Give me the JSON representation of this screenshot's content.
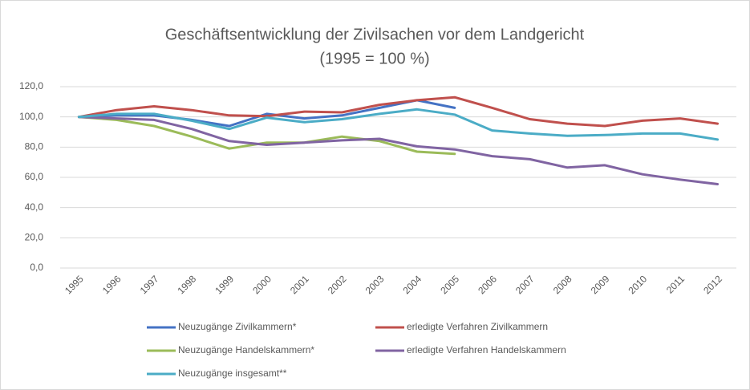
{
  "chart_data": {
    "type": "line",
    "title": "Geschäftsentwicklung der Zivilsachen vor dem Landgericht",
    "subtitle": "(1995 = 100 %)",
    "categories": [
      "1995",
      "1996",
      "1997",
      "1998",
      "1999",
      "2000",
      "2001",
      "2002",
      "2003",
      "2004",
      "2005",
      "2006",
      "2007",
      "2008",
      "2009",
      "2010",
      "2011",
      "2012"
    ],
    "ylim": [
      0,
      120
    ],
    "yticks": [
      {
        "value": 0,
        "label": "0,0"
      },
      {
        "value": 20,
        "label": "20,0"
      },
      {
        "value": 40,
        "label": "40,0"
      },
      {
        "value": 60,
        "label": "60,0"
      },
      {
        "value": 80,
        "label": "80,0"
      },
      {
        "value": 100,
        "label": "100,0"
      },
      {
        "value": 120,
        "label": "120,0"
      }
    ],
    "grid": true,
    "legend": "bottom",
    "series": [
      {
        "name": "Neuzugänge Zivilkammern*",
        "color": "#4472c4",
        "values": [
          100,
          101,
          101,
          98,
          94,
          102,
          99,
          101,
          106,
          111,
          106,
          null,
          null,
          null,
          null,
          null,
          null,
          null
        ]
      },
      {
        "name": "erledigte Verfahren Zivilkammern",
        "color": "#c0504d",
        "values": [
          100,
          104.5,
          107,
          104.5,
          101,
          100.5,
          103.5,
          103,
          108,
          111,
          113,
          106,
          98.5,
          95.5,
          94,
          97.5,
          99,
          95.5
        ]
      },
      {
        "name": "Neuzugänge Handelskammern*",
        "color": "#9bbb59",
        "values": [
          100,
          98,
          94,
          87,
          79,
          83,
          83,
          87,
          84,
          77,
          75.5,
          null,
          null,
          null,
          null,
          null,
          null,
          null
        ]
      },
      {
        "name": "erledigte Verfahren Handelskammern",
        "color": "#8064a2",
        "values": [
          100,
          99,
          98,
          92,
          84,
          81.5,
          83,
          84.5,
          85.5,
          80.5,
          78.5,
          74,
          72,
          66.5,
          68,
          62,
          58.5,
          55.5
        ]
      },
      {
        "name": "Neuzugänge insgesamt**",
        "color": "#4bacc6",
        "values": [
          100,
          102,
          102,
          97.5,
          92,
          99.5,
          96.5,
          98.5,
          102,
          105,
          101.5,
          91,
          89,
          87.5,
          88,
          89,
          89,
          85
        ]
      }
    ]
  }
}
